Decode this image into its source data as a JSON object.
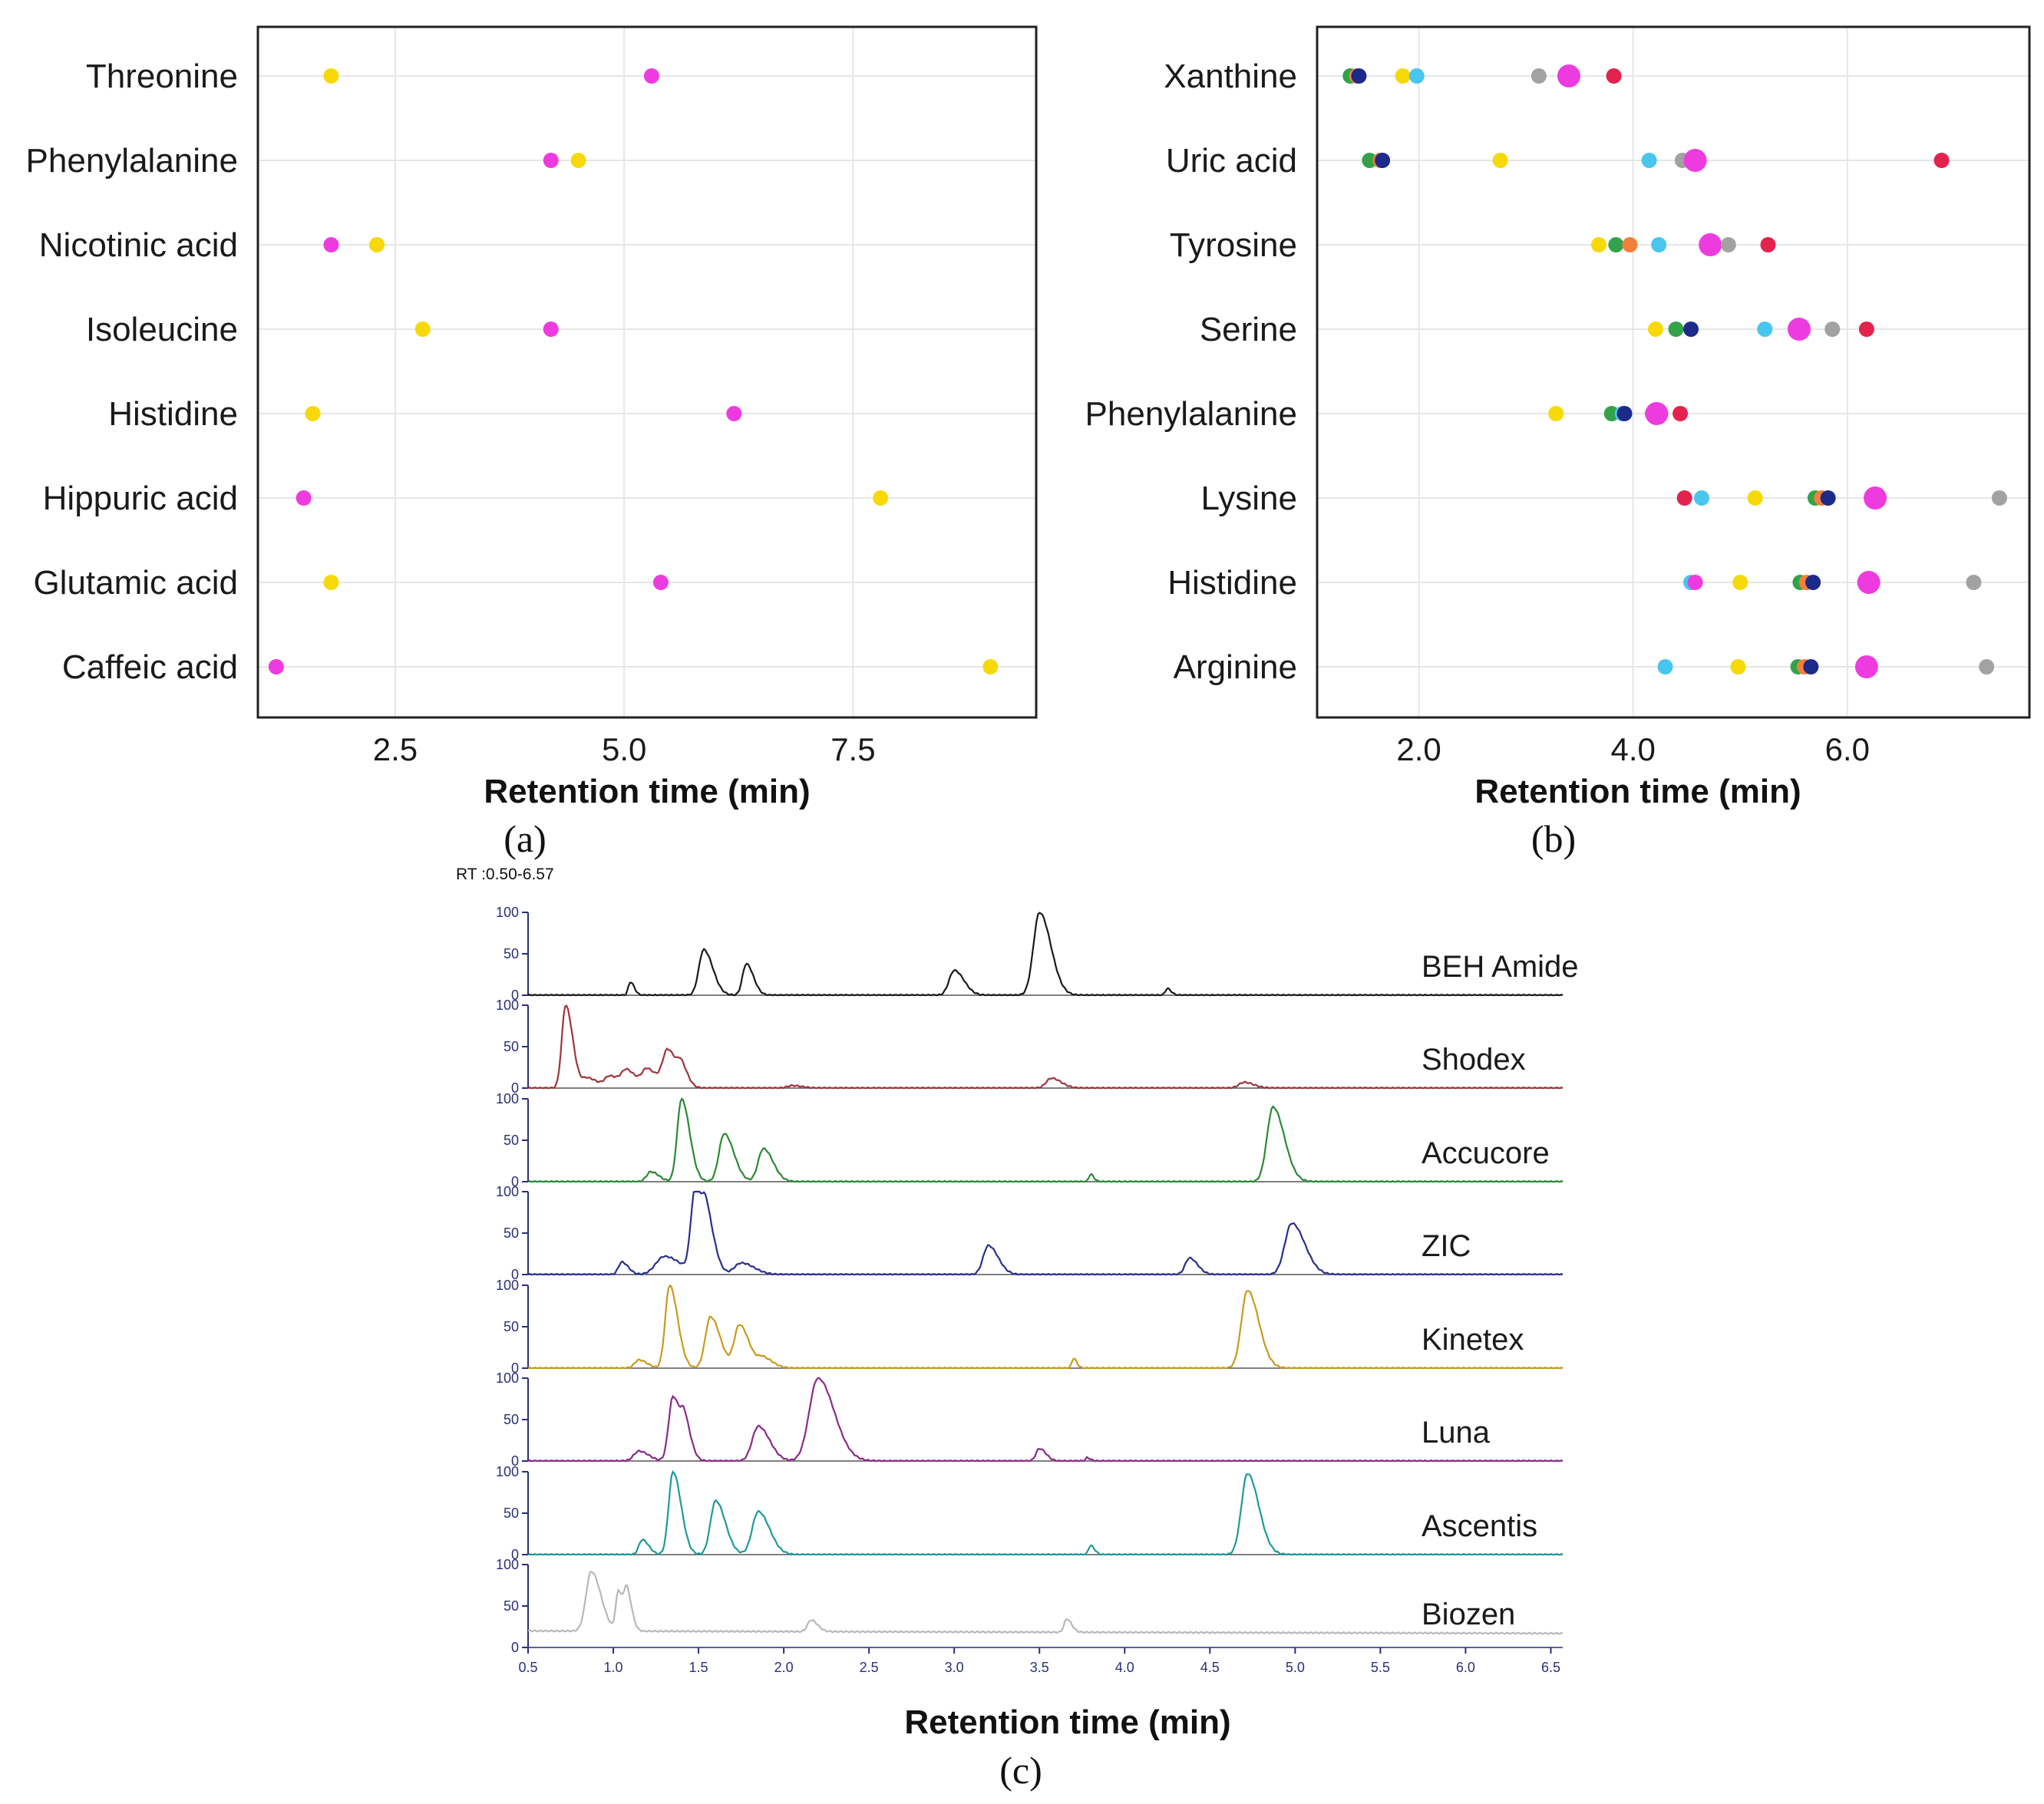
{
  "panels": {
    "a": "(a)",
    "b": "(b)",
    "c": "(c)"
  },
  "colors": {
    "magenta": "#ee3bdf",
    "yellow": "#f7d90a",
    "green": "#33a34a",
    "orange": "#f47f3a",
    "red": "#e3224d",
    "cyan": "#48c6ee",
    "gray": "#a2a2a2",
    "navy": "#1c2a8a",
    "purple_gray": "#9c8aa8"
  },
  "chart_data": [
    {
      "id": "a",
      "type": "scatter",
      "title": "",
      "xlabel": "Retention time (min)",
      "ylabel": "",
      "xlim": [
        1.0,
        9.5
      ],
      "xticks": [
        2.5,
        5.0,
        7.5
      ],
      "xtick_labels": [
        "2.5",
        "5.0",
        "7.5"
      ],
      "categories": [
        "Threonine",
        "Phenylalanine",
        "Nicotinic acid",
        "Isoleucine",
        "Histidine",
        "Hippuric acid",
        "Glutamic acid",
        "Caffeic acid"
      ],
      "series": [
        {
          "name": "magenta",
          "color": "#ee3bdf",
          "values": [
            5.3,
            4.2,
            1.8,
            4.2,
            6.2,
            1.5,
            5.4,
            1.2
          ]
        },
        {
          "name": "yellow",
          "color": "#f7d90a",
          "values": [
            1.8,
            4.5,
            2.3,
            2.8,
            1.6,
            7.8,
            1.8,
            9.0
          ]
        }
      ]
    },
    {
      "id": "b",
      "type": "scatter",
      "title": "",
      "xlabel": "Retention time (min)",
      "ylabel": "",
      "xlim": [
        1.05,
        7.7
      ],
      "xticks": [
        2.0,
        4.0,
        6.0
      ],
      "xtick_labels": [
        "2.0",
        "4.0",
        "6.0"
      ],
      "categories": [
        "Xanthine",
        "Uric acid",
        "Tyrosine",
        "Serine",
        "Phenylalanine",
        "Lysine",
        "Histidine",
        "Arginine"
      ],
      "points": [
        {
          "category": "Xanthine",
          "color": "green",
          "x": 1.36
        },
        {
          "category": "Xanthine",
          "color": "orange",
          "x": 1.42
        },
        {
          "category": "Xanthine",
          "color": "navy",
          "x": 1.44
        },
        {
          "category": "Xanthine",
          "color": "yellow",
          "x": 1.85
        },
        {
          "category": "Xanthine",
          "color": "cyan",
          "x": 1.98
        },
        {
          "category": "Xanthine",
          "color": "gray",
          "x": 3.12
        },
        {
          "category": "Xanthine",
          "color": "magenta",
          "x": 3.4,
          "size": "large"
        },
        {
          "category": "Xanthine",
          "color": "red",
          "x": 3.82
        },
        {
          "category": "Uric acid",
          "color": "green",
          "x": 1.54
        },
        {
          "category": "Uric acid",
          "color": "orange",
          "x": 1.64
        },
        {
          "category": "Uric acid",
          "color": "navy",
          "x": 1.66
        },
        {
          "category": "Uric acid",
          "color": "yellow",
          "x": 2.76
        },
        {
          "category": "Uric acid",
          "color": "cyan",
          "x": 4.15
        },
        {
          "category": "Uric acid",
          "color": "gray",
          "x": 4.46
        },
        {
          "category": "Uric acid",
          "color": "magenta",
          "x": 4.58,
          "size": "large"
        },
        {
          "category": "Uric acid",
          "color": "red",
          "x": 6.88
        },
        {
          "category": "Tyrosine",
          "color": "yellow",
          "x": 3.68
        },
        {
          "category": "Tyrosine",
          "color": "green",
          "x": 3.84
        },
        {
          "category": "Tyrosine",
          "color": "orange",
          "x": 3.97
        },
        {
          "category": "Tyrosine",
          "color": "cyan",
          "x": 4.24
        },
        {
          "category": "Tyrosine",
          "color": "magenta",
          "x": 4.72,
          "size": "large"
        },
        {
          "category": "Tyrosine",
          "color": "gray",
          "x": 4.89
        },
        {
          "category": "Tyrosine",
          "color": "red",
          "x": 5.26
        },
        {
          "category": "Serine",
          "color": "yellow",
          "x": 4.21
        },
        {
          "category": "Serine",
          "color": "green",
          "x": 4.4
        },
        {
          "category": "Serine",
          "color": "navy",
          "x": 4.54
        },
        {
          "category": "Serine",
          "color": "cyan",
          "x": 5.23
        },
        {
          "category": "Serine",
          "color": "magenta",
          "x": 5.55,
          "size": "large"
        },
        {
          "category": "Serine",
          "color": "gray",
          "x": 5.86
        },
        {
          "category": "Serine",
          "color": "red",
          "x": 6.18
        },
        {
          "category": "Phenylalanine",
          "color": "yellow",
          "x": 3.28
        },
        {
          "category": "Phenylalanine",
          "color": "green",
          "x": 3.8
        },
        {
          "category": "Phenylalanine",
          "color": "cyan",
          "x": 3.9
        },
        {
          "category": "Phenylalanine",
          "color": "navy",
          "x": 3.92
        },
        {
          "category": "Phenylalanine",
          "color": "gray",
          "x": 4.18
        },
        {
          "category": "Phenylalanine",
          "color": "magenta",
          "x": 4.22,
          "size": "large"
        },
        {
          "category": "Phenylalanine",
          "color": "red",
          "x": 4.44
        },
        {
          "category": "Lysine",
          "color": "red",
          "x": 4.48
        },
        {
          "category": "Lysine",
          "color": "cyan",
          "x": 4.64
        },
        {
          "category": "Lysine",
          "color": "yellow",
          "x": 5.14
        },
        {
          "category": "Lysine",
          "color": "green",
          "x": 5.7
        },
        {
          "category": "Lysine",
          "color": "orange",
          "x": 5.76
        },
        {
          "category": "Lysine",
          "color": "navy",
          "x": 5.82
        },
        {
          "category": "Lysine",
          "color": "magenta",
          "x": 6.26,
          "size": "large"
        },
        {
          "category": "Lysine",
          "color": "gray",
          "x": 7.42
        },
        {
          "category": "Histidine",
          "color": "cyan",
          "x": 4.54
        },
        {
          "category": "Histidine",
          "color": "magenta",
          "x": 4.58
        },
        {
          "category": "Histidine",
          "color": "yellow",
          "x": 5.0
        },
        {
          "category": "Histidine",
          "color": "green",
          "x": 5.56
        },
        {
          "category": "Histidine",
          "color": "orange",
          "x": 5.62
        },
        {
          "category": "Histidine",
          "color": "navy",
          "x": 5.68
        },
        {
          "category": "Histidine",
          "color": "magenta",
          "x": 6.2,
          "size": "large"
        },
        {
          "category": "Histidine",
          "color": "gray",
          "x": 7.18
        },
        {
          "category": "Arginine",
          "color": "cyan",
          "x": 4.3
        },
        {
          "category": "Arginine",
          "color": "yellow",
          "x": 4.98
        },
        {
          "category": "Arginine",
          "color": "green",
          "x": 5.54
        },
        {
          "category": "Arginine",
          "color": "orange",
          "x": 5.6
        },
        {
          "category": "Arginine",
          "color": "navy",
          "x": 5.66
        },
        {
          "category": "Arginine",
          "color": "magenta",
          "x": 6.18,
          "size": "large"
        },
        {
          "category": "Arginine",
          "color": "gray",
          "x": 7.3
        }
      ]
    },
    {
      "id": "c",
      "type": "line",
      "title": "RT :0.50-6.57",
      "xlabel": "Retention time (min)",
      "ylabel": "",
      "xlim": [
        0.5,
        6.57
      ],
      "ylim": [
        0,
        100
      ],
      "xticks": [
        0.5,
        1.0,
        1.5,
        2.0,
        2.5,
        3.0,
        3.5,
        4.0,
        4.5,
        5.0,
        5.5,
        6.0,
        6.5
      ],
      "xtick_labels": [
        "0.5",
        "1.0",
        "1.5",
        "2.0",
        "2.5",
        "3.0",
        "3.5",
        "4.0",
        "4.5",
        "5.0",
        "5.5",
        "6.0",
        "6.5"
      ],
      "yticks": [
        0,
        50,
        100
      ],
      "ytick_labels": [
        "0",
        "50",
        "100"
      ],
      "series": [
        {
          "name": "BEH Amide",
          "color": "#1a1a1a",
          "baseline": 0,
          "peaks": [
            [
              1.1,
              16,
              0.012
            ],
            [
              1.53,
              55,
              0.028
            ],
            [
              1.78,
              38,
              0.022
            ],
            [
              3.0,
              30,
              0.03
            ],
            [
              3.5,
              100,
              0.035
            ],
            [
              4.25,
              8,
              0.012
            ]
          ]
        },
        {
          "name": "Shodex",
          "color": "#a0343c",
          "baseline": 0,
          "peaks": [
            [
              0.72,
              100,
              0.022
            ],
            [
              0.85,
              12,
              0.03
            ],
            [
              0.98,
              14,
              0.03
            ],
            [
              1.08,
              20,
              0.03
            ],
            [
              1.2,
              22,
              0.03
            ],
            [
              1.32,
              45,
              0.03
            ],
            [
              1.4,
              18,
              0.02
            ],
            [
              2.05,
              3,
              0.03
            ],
            [
              3.57,
              12,
              0.03
            ],
            [
              4.7,
              7,
              0.03
            ]
          ]
        },
        {
          "name": "Accucore",
          "color": "#2a8a34",
          "baseline": 0,
          "peaks": [
            [
              1.22,
              12,
              0.025
            ],
            [
              1.4,
              100,
              0.025
            ],
            [
              1.65,
              58,
              0.03
            ],
            [
              1.88,
              40,
              0.03
            ],
            [
              3.8,
              9,
              0.01
            ],
            [
              4.87,
              90,
              0.035
            ]
          ]
        },
        {
          "name": "ZIC",
          "color": "#2a2f8c",
          "baseline": 0,
          "peaks": [
            [
              1.05,
              15,
              0.02
            ],
            [
              1.3,
              22,
              0.05
            ],
            [
              1.48,
              100,
              0.025
            ],
            [
              1.55,
              55,
              0.025
            ],
            [
              1.75,
              14,
              0.04
            ],
            [
              3.2,
              35,
              0.03
            ],
            [
              4.38,
              20,
              0.025
            ],
            [
              4.98,
              62,
              0.04
            ]
          ]
        },
        {
          "name": "Kinetex",
          "color": "#c99a1c",
          "baseline": 0,
          "peaks": [
            [
              1.15,
              10,
              0.025
            ],
            [
              1.33,
              100,
              0.025
            ],
            [
              1.57,
              62,
              0.03
            ],
            [
              1.74,
              52,
              0.03
            ],
            [
              1.88,
              12,
              0.03
            ],
            [
              3.7,
              12,
              0.01
            ],
            [
              4.72,
              94,
              0.035
            ]
          ]
        },
        {
          "name": "Luna",
          "color": "#8a2a8a",
          "baseline": 0,
          "peaks": [
            [
              1.15,
              12,
              0.03
            ],
            [
              1.35,
              78,
              0.025
            ],
            [
              1.42,
              35,
              0.02
            ],
            [
              1.85,
              42,
              0.035
            ],
            [
              2.2,
              100,
              0.05
            ],
            [
              3.5,
              15,
              0.02
            ],
            [
              3.78,
              4,
              0.01
            ]
          ]
        },
        {
          "name": "Ascentis",
          "color": "#1f9a9a",
          "baseline": 0,
          "peaks": [
            [
              1.17,
              18,
              0.02
            ],
            [
              1.35,
              100,
              0.025
            ],
            [
              1.6,
              65,
              0.03
            ],
            [
              1.85,
              52,
              0.035
            ],
            [
              3.8,
              11,
              0.012
            ],
            [
              4.72,
              98,
              0.035
            ]
          ]
        },
        {
          "name": "Biozen",
          "color": "#b8b8b8",
          "baseline": 20,
          "peaks": [
            [
              0.87,
              72,
              0.03
            ],
            [
              1.03,
              48,
              0.015
            ],
            [
              1.08,
              45,
              0.015
            ],
            [
              2.16,
              14,
              0.02
            ],
            [
              3.66,
              16,
              0.015
            ]
          ]
        }
      ]
    }
  ]
}
